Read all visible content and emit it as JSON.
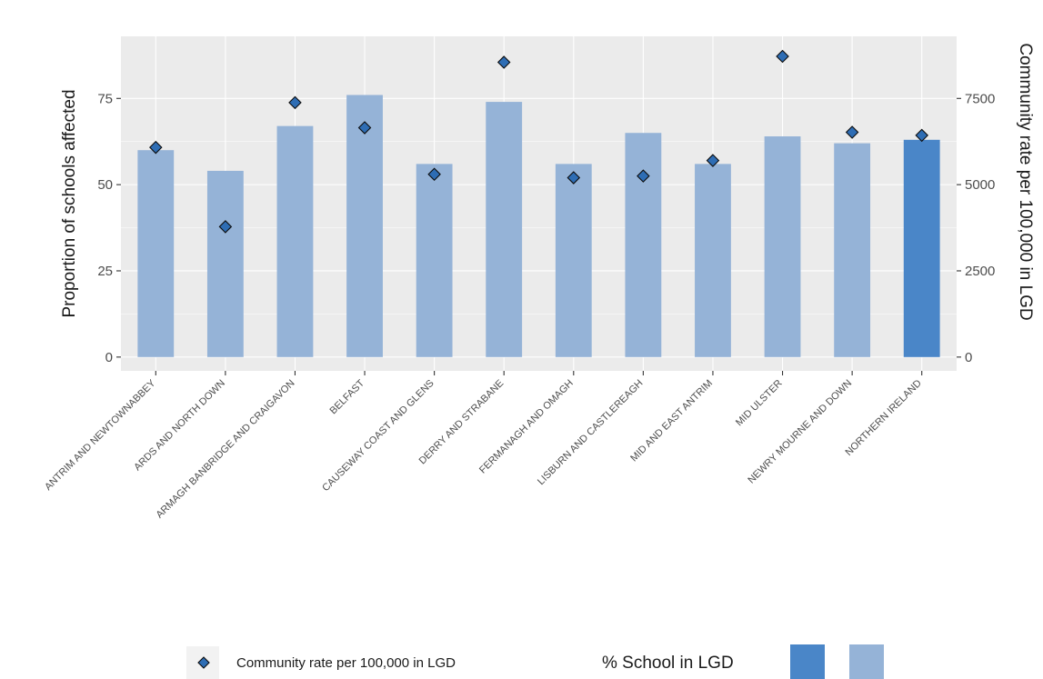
{
  "chart_data": {
    "type": "bar",
    "categories": [
      "ANTRIM AND NEWTOWNABBEY",
      "ARDS AND NORTH DOWN",
      "ARMAGH BANBRIDGE AND CRAIGAVON",
      "BELFAST",
      "CAUSEWAY COAST AND GLENS",
      "DERRY AND STRABANE",
      "FERMANAGH AND OMAGH",
      "LISBURN AND CASTLEREAGH",
      "MID AND EAST ANTRIM",
      "MID ULSTER",
      "NEWRY MOURNE AND DOWN",
      "NORTHERN IRELAND"
    ],
    "series": [
      {
        "name": "% School in LGD",
        "type": "bar",
        "axis": "left",
        "values": [
          60,
          54,
          67,
          76,
          56,
          74,
          56,
          65,
          56,
          64,
          62,
          63
        ],
        "colors": [
          "#95b3d7",
          "#95b3d7",
          "#95b3d7",
          "#95b3d7",
          "#95b3d7",
          "#95b3d7",
          "#95b3d7",
          "#95b3d7",
          "#95b3d7",
          "#95b3d7",
          "#95b3d7",
          "#4a86c8"
        ]
      },
      {
        "name": "Community rate per 100,000 in LGD",
        "type": "scatter",
        "axis": "right",
        "values": [
          6080,
          3780,
          7380,
          6650,
          5300,
          8550,
          5200,
          5250,
          5700,
          8720,
          6520,
          6430
        ],
        "color": "#2e6db4"
      }
    ],
    "ylabel": "Proportion of schools affected",
    "y2label": "Community rate per 100,000 in LGD",
    "ylim": [
      -4,
      93
    ],
    "y2lim": [
      -400,
      9300
    ],
    "yticks": [
      "0",
      "25",
      "50",
      "75"
    ],
    "y2ticks": [
      "0",
      "2500",
      "5000",
      "7500"
    ],
    "grid": true,
    "legend_position": "bottom",
    "legend": {
      "point_label": "Community rate per 100,000 in LGD",
      "bar_title": "% School in LGD",
      "bar_swatch_colors": [
        "#4a86c8",
        "#95b3d7"
      ]
    }
  },
  "colors": {
    "panel_background": "#ebebeb",
    "grid_major": "#ffffff",
    "bar_highlight": "#4a86c8",
    "bar_default": "#95b3d7",
    "point_fill": "#2e6db4"
  }
}
